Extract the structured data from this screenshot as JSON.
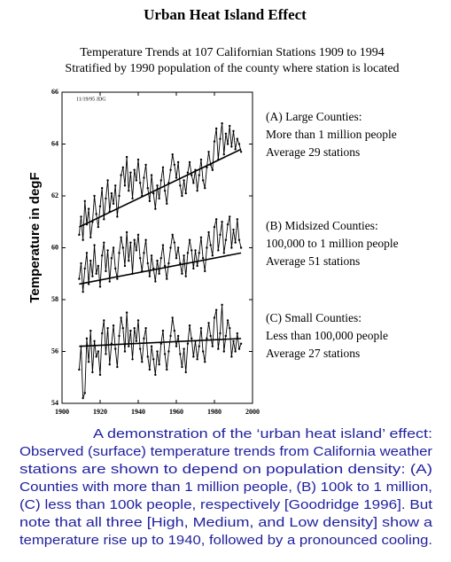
{
  "chart_data": {
    "type": "line",
    "title": "Urban Heat Island Effect",
    "subtitle": [
      "Temperature Trends at 107 Californian Stations 1909 to 1994",
      "Stratified by 1990 population of the county where station is located"
    ],
    "y_label": "Temperature in degF",
    "stamp": "11/19/95 JDG",
    "x": [
      1909,
      1910,
      1911,
      1912,
      1913,
      1914,
      1915,
      1916,
      1917,
      1918,
      1919,
      1920,
      1921,
      1922,
      1923,
      1924,
      1925,
      1926,
      1927,
      1928,
      1929,
      1930,
      1931,
      1932,
      1933,
      1934,
      1935,
      1936,
      1937,
      1938,
      1939,
      1940,
      1941,
      1942,
      1943,
      1944,
      1945,
      1946,
      1947,
      1948,
      1949,
      1950,
      1951,
      1952,
      1953,
      1954,
      1955,
      1956,
      1957,
      1958,
      1959,
      1960,
      1961,
      1962,
      1963,
      1964,
      1965,
      1966,
      1967,
      1968,
      1969,
      1970,
      1971,
      1972,
      1973,
      1974,
      1975,
      1976,
      1977,
      1978,
      1979,
      1980,
      1981,
      1982,
      1983,
      1984,
      1985,
      1986,
      1987,
      1988,
      1989,
      1990,
      1991,
      1992,
      1993,
      1994
    ],
    "series": [
      {
        "color": "#000000",
        "values": [
          60.5,
          61.2,
          60.3,
          61.8,
          60.9,
          61.5,
          60.4,
          61.0,
          62.0,
          61.3,
          60.8,
          61.6,
          62.3,
          61.1,
          61.9,
          62.6,
          61.4,
          62.1,
          61.7,
          62.4,
          61.2,
          62.0,
          62.8,
          63.1,
          62.4,
          63.5,
          62.2,
          62.9,
          61.9,
          63.0,
          62.6,
          63.4,
          62.5,
          62.0,
          62.7,
          63.2,
          62.3,
          61.8,
          62.8,
          62.1,
          61.5,
          62.4,
          61.9,
          62.6,
          63.1,
          62.2,
          61.7,
          62.5,
          63.0,
          63.6,
          63.2,
          62.7,
          63.3,
          62.4,
          62.0,
          62.6,
          62.1,
          62.9,
          63.3,
          62.8,
          62.5,
          63.0,
          62.2,
          62.8,
          63.4,
          62.6,
          62.3,
          63.1,
          63.7,
          63.2,
          63.0,
          64.1,
          64.6,
          63.4,
          64.2,
          64.8,
          63.6,
          64.4,
          64.0,
          64.7,
          63.9,
          64.5,
          63.8,
          64.2,
          64.0,
          63.7
        ]
      },
      {
        "color": "#000000",
        "values": [
          58.8,
          59.4,
          58.3,
          59.2,
          59.8,
          58.6,
          59.5,
          58.9,
          60.1,
          59.0,
          59.3,
          58.5,
          59.7,
          60.2,
          59.1,
          59.9,
          58.7,
          59.6,
          60.0,
          59.2,
          58.8,
          59.8,
          60.4,
          60.0,
          59.3,
          60.6,
          59.5,
          60.2,
          59.0,
          60.3,
          59.9,
          60.5,
          59.6,
          59.1,
          59.8,
          60.3,
          59.4,
          58.9,
          59.7,
          59.2,
          58.7,
          59.5,
          59.0,
          59.6,
          60.1,
          59.3,
          58.8,
          59.4,
          60.0,
          60.5,
          60.2,
          59.6,
          60.0,
          59.4,
          59.0,
          59.7,
          58.9,
          59.8,
          60.3,
          59.9,
          59.2,
          59.9,
          59.3,
          59.8,
          60.4,
          59.6,
          59.1,
          60.0,
          60.6,
          60.1,
          59.7,
          60.8,
          61.1,
          59.9,
          60.5,
          61.0,
          59.8,
          60.3,
          60.9,
          61.2,
          60.0,
          60.7,
          60.2,
          61.1,
          60.3,
          60.0
        ]
      },
      {
        "color": "#000000",
        "values": [
          55.3,
          56.2,
          54.2,
          54.4,
          56.5,
          55.6,
          56.8,
          55.2,
          56.4,
          55.8,
          56.0,
          55.1,
          56.7,
          57.2,
          55.9,
          56.9,
          55.5,
          56.3,
          57.0,
          56.1,
          55.4,
          56.6,
          57.3,
          56.9,
          56.0,
          57.5,
          56.2,
          56.8,
          55.7,
          56.9,
          56.4,
          57.2,
          56.1,
          55.6,
          56.5,
          56.9,
          55.8,
          55.3,
          56.2,
          55.7,
          55.1,
          56.0,
          55.5,
          56.3,
          56.8,
          55.9,
          55.3,
          56.0,
          56.6,
          57.3,
          56.8,
          56.2,
          56.6,
          55.9,
          55.4,
          56.1,
          55.2,
          56.3,
          57.0,
          56.5,
          55.8,
          56.4,
          55.7,
          56.2,
          56.9,
          56.0,
          55.6,
          56.5,
          57.1,
          56.6,
          56.2,
          57.3,
          57.6,
          56.1,
          56.7,
          57.8,
          56.0,
          56.6,
          57.2,
          56.9,
          55.8,
          56.4,
          56.0,
          56.7,
          56.1,
          56.3
        ]
      }
    ],
    "trend_lines": [
      {
        "x": [
          1909,
          1994
        ],
        "values": [
          60.8,
          63.8
        ]
      },
      {
        "x": [
          1909,
          1994
        ],
        "values": [
          58.6,
          59.8
        ]
      },
      {
        "x": [
          1909,
          1994
        ],
        "values": [
          56.2,
          56.5
        ]
      }
    ],
    "xlim": [
      1900,
      2000
    ],
    "xticks": [
      1900,
      1920,
      1940,
      1960,
      1980,
      2000
    ],
    "ylim": [
      54,
      66
    ],
    "yticks": [
      54,
      56,
      58,
      60,
      62,
      64,
      66
    ],
    "annotations": [
      [
        "(A) Large Counties:",
        "More than 1 million people",
        "Average 29 stations"
      ],
      [
        "(B) Midsized Counties:",
        "100,000 to 1 million people",
        "Average 51 stations"
      ],
      [
        "(C) Small Counties:",
        "Less than 100,000 people",
        "Average 27 stations"
      ]
    ]
  },
  "caption": [
    "A demonstration of the ‘urban heat island’ effect:",
    "Observed (surface) temperature trends from California weather",
    "stations are shown to depend on population density: (A)",
    "Counties with more than 1 million people, (B) 100k to 1 million,",
    "(C) less than 100k people, respectively [Goodridge 1996]. But",
    "note that all three [High, Medium, and Low density] show a",
    "temperature rise up to 1940, followed by a pronounced cooling."
  ]
}
